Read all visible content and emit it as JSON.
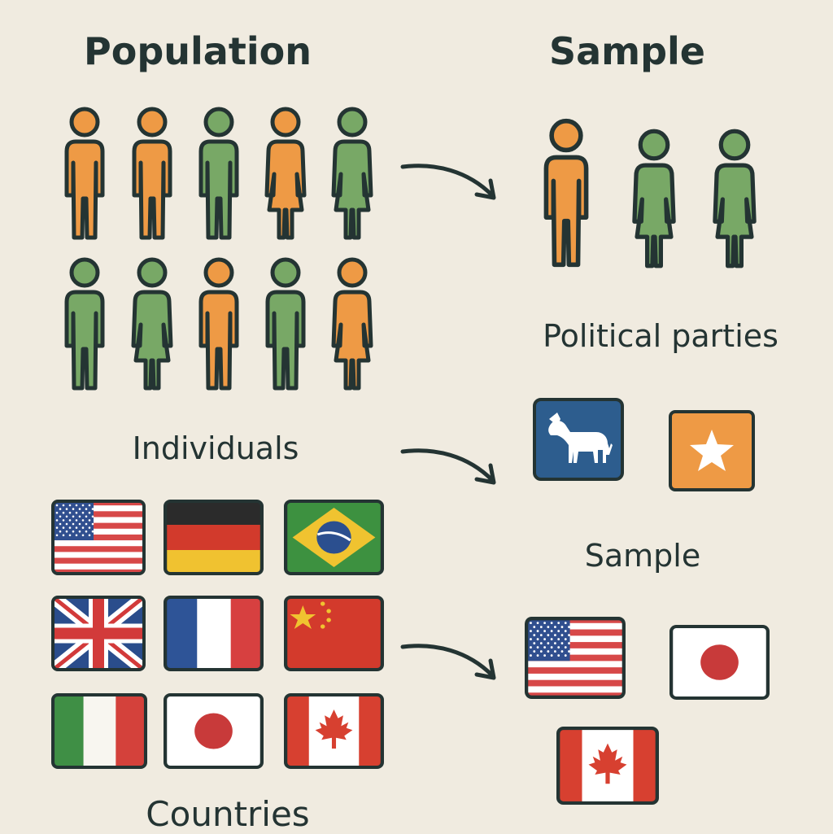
{
  "titles": {
    "population": "Population",
    "sample": "Sample"
  },
  "labels": {
    "individuals": "Individuals",
    "political_parties": "Political parties",
    "sample_second": "Sample",
    "countries": "Countries"
  },
  "colors": {
    "background": "#f0ebe0",
    "outline": "#243433",
    "orange": "#ee9a45",
    "green": "#78a866",
    "democrat_blue": "#2d5d8e",
    "republican_orange": "#ee9a45"
  },
  "population_people": [
    {
      "color": "orange",
      "shape": "man"
    },
    {
      "color": "orange",
      "shape": "man"
    },
    {
      "color": "green",
      "shape": "man"
    },
    {
      "color": "orange",
      "shape": "woman"
    },
    {
      "color": "green",
      "shape": "woman"
    },
    {
      "color": "green",
      "shape": "man"
    },
    {
      "color": "green",
      "shape": "woman"
    },
    {
      "color": "orange",
      "shape": "man"
    },
    {
      "color": "green",
      "shape": "man"
    },
    {
      "color": "orange",
      "shape": "woman"
    }
  ],
  "sample_people": [
    {
      "color": "orange",
      "shape": "man"
    },
    {
      "color": "green",
      "shape": "woman"
    },
    {
      "color": "green",
      "shape": "woman"
    }
  ],
  "parties": [
    {
      "icon": "donkey-icon",
      "color": "democrat_blue"
    },
    {
      "icon": "star-icon",
      "color": "republican_orange"
    }
  ],
  "population_flags": [
    "usa",
    "germany",
    "brazil",
    "uk",
    "france",
    "china",
    "italy",
    "japan",
    "canada"
  ],
  "sample_flags": [
    "usa",
    "japan",
    "canada"
  ]
}
